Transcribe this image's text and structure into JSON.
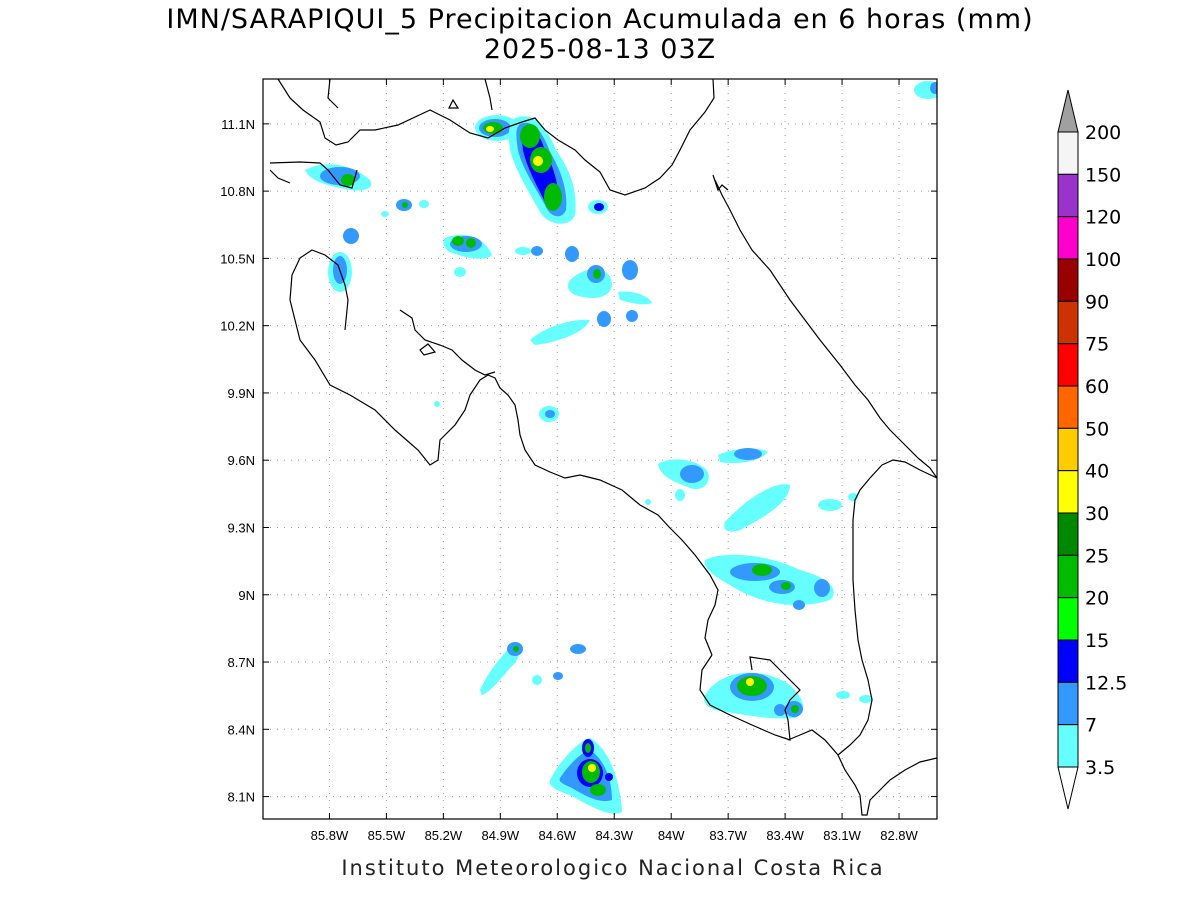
{
  "header": {
    "title": "IMN/SARAPIQUI_5 Precipitacion Acumulada en 6 horas (mm)",
    "subtitle": "2025-08-13 03Z"
  },
  "footer": {
    "text": "Instituto Meteorologico Nacional Costa Rica"
  },
  "map": {
    "lon_range": [
      -86.15,
      -82.6
    ],
    "lat_range": [
      8.0,
      11.3
    ],
    "x_ticks": [
      {
        "lon": -85.8,
        "label": "85.8W"
      },
      {
        "lon": -85.5,
        "label": "85.5W"
      },
      {
        "lon": -85.2,
        "label": "85.2W"
      },
      {
        "lon": -84.9,
        "label": "84.9W"
      },
      {
        "lon": -84.6,
        "label": "84.6W"
      },
      {
        "lon": -84.3,
        "label": "84.3W"
      },
      {
        "lon": -84.0,
        "label": "84W"
      },
      {
        "lon": -83.7,
        "label": "83.7W"
      },
      {
        "lon": -83.4,
        "label": "83.4W"
      },
      {
        "lon": -83.1,
        "label": "83.1W"
      },
      {
        "lon": -82.8,
        "label": "82.8W"
      }
    ],
    "y_ticks": [
      {
        "lat": 11.1,
        "label": "11.1N"
      },
      {
        "lat": 10.8,
        "label": "10.8N"
      },
      {
        "lat": 10.5,
        "label": "10.5N"
      },
      {
        "lat": 10.2,
        "label": "10.2N"
      },
      {
        "lat": 9.9,
        "label": "9.9N"
      },
      {
        "lat": 9.6,
        "label": "9.6N"
      },
      {
        "lat": 9.3,
        "label": "9.3N"
      },
      {
        "lat": 9.0,
        "label": "9N"
      },
      {
        "lat": 8.7,
        "label": "8.7N"
      },
      {
        "lat": 8.4,
        "label": "8.4N"
      },
      {
        "lat": 8.1,
        "label": "8.1N"
      }
    ],
    "grid": true
  },
  "colorbar": {
    "levels": [
      {
        "label": "200",
        "color": "#a0a0a0"
      },
      {
        "label": "150",
        "color": "#f5f5f5"
      },
      {
        "label": "120",
        "color": "#9933cc"
      },
      {
        "label": "100",
        "color": "#ff00cc"
      },
      {
        "label": "90",
        "color": "#990000"
      },
      {
        "label": "75",
        "color": "#cc3300"
      },
      {
        "label": "60",
        "color": "#ff0000"
      },
      {
        "label": "50",
        "color": "#ff6600"
      },
      {
        "label": "40",
        "color": "#ffcc00"
      },
      {
        "label": "30",
        "color": "#ffff00"
      },
      {
        "label": "25",
        "color": "#008800"
      },
      {
        "label": "20",
        "color": "#00bb00"
      },
      {
        "label": "15",
        "color": "#00ff00"
      },
      {
        "label": "12.5",
        "color": "#0000ff"
      },
      {
        "label": "7",
        "color": "#3399ff"
      },
      {
        "label": "3.5",
        "color": "#66ffff"
      }
    ]
  }
}
